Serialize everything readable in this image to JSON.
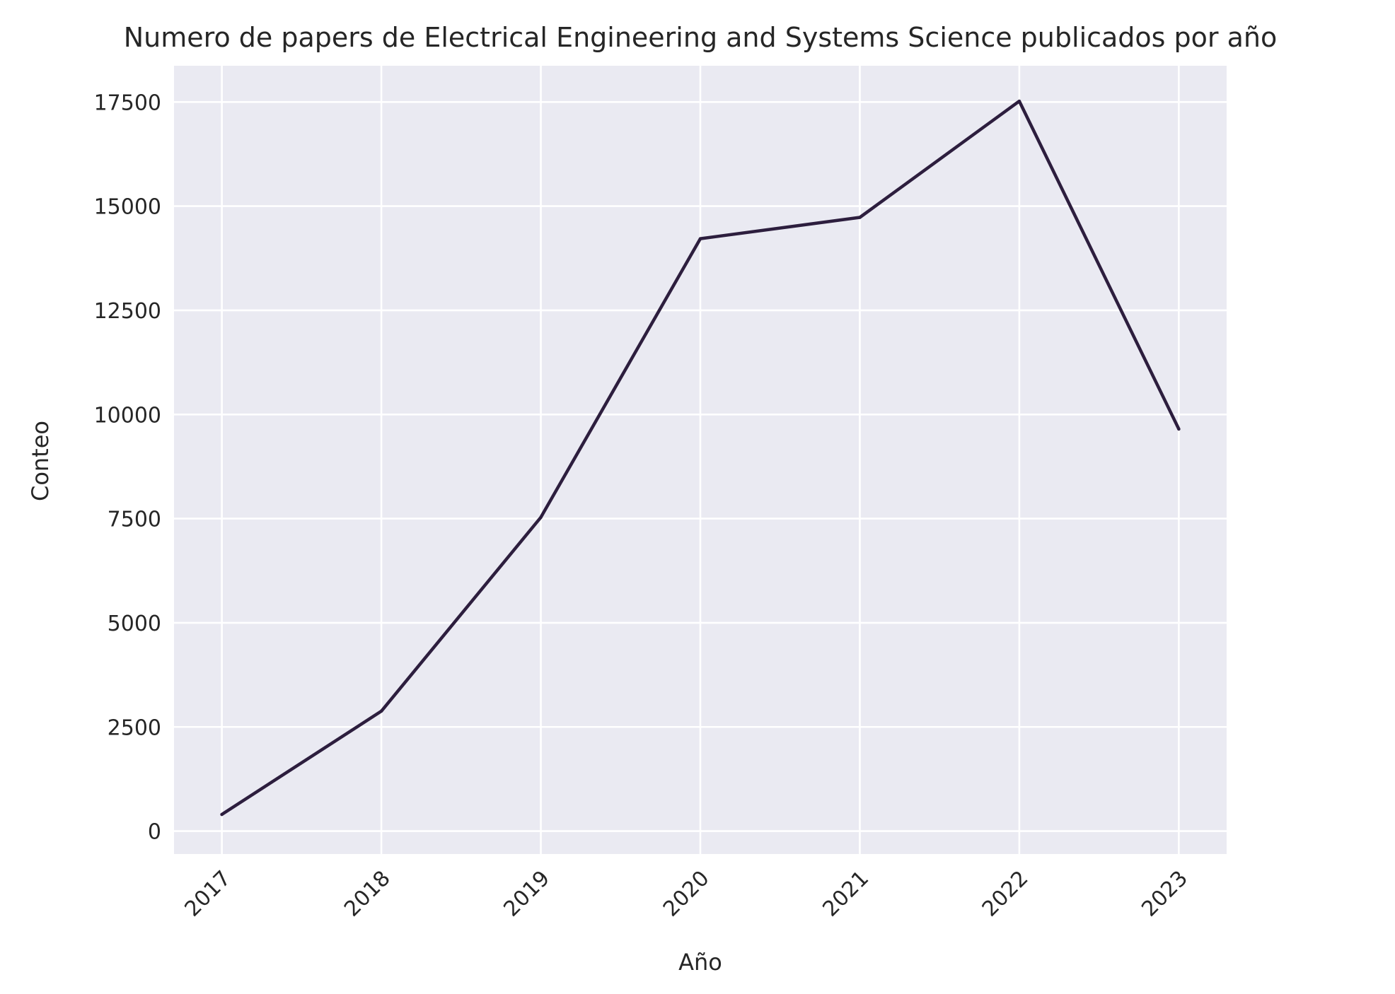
{
  "chart_data": {
    "type": "line",
    "title": "Numero de papers de Electrical Engineering and Systems Science publicados por año",
    "xlabel": "Año",
    "ylabel": "Conteo",
    "x": [
      "2017",
      "2018",
      "2019",
      "2020",
      "2021",
      "2022",
      "2023"
    ],
    "series": [
      {
        "name": "",
        "values": [
          400,
          2880,
          7530,
          14220,
          14730,
          17520,
          9650
        ],
        "color": "#2d1e3e"
      }
    ],
    "yticks": [
      0,
      2500,
      5000,
      7500,
      10000,
      12500,
      15000,
      17500
    ],
    "ytick_labels": [
      "0",
      "2500",
      "5000",
      "7500",
      "10000",
      "12500",
      "15000",
      "17500"
    ],
    "ylim": [
      -550,
      18370
    ],
    "xlim": [
      -0.3,
      6.3
    ],
    "grid": true,
    "legend": "none",
    "colors": {
      "plot_background": "#eaeaf2",
      "grid": "#ffffff",
      "text": "#262626"
    }
  }
}
